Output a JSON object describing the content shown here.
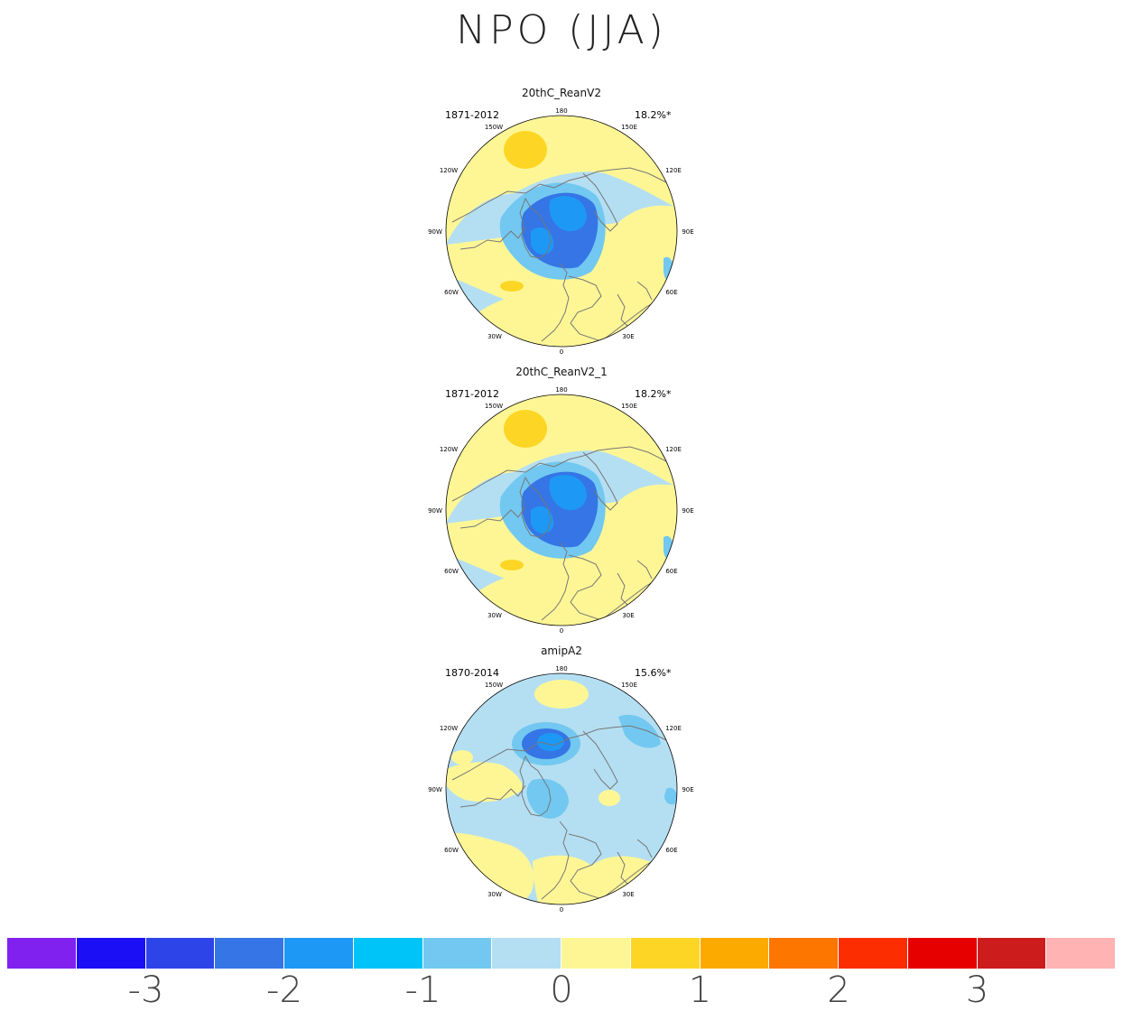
{
  "title": "NPO (JJA)",
  "panels": [
    {
      "name": "20thC_ReanV2",
      "period": "1871-2012",
      "variance": "18.2%*",
      "variant": "rean"
    },
    {
      "name": "20thC_ReanV2_1",
      "period": "1871-2012",
      "variance": "18.2%*",
      "variant": "rean"
    },
    {
      "name": "amipA2",
      "period": "1870-2014",
      "variance": "15.6%*",
      "variant": "amip"
    }
  ],
  "lon_labels": [
    "180",
    "150W",
    "150E",
    "120W",
    "120E",
    "90W",
    "90E",
    "60W",
    "60E",
    "30W",
    "30E",
    "0"
  ],
  "colorbar": {
    "colors": [
      "#8021f0",
      "#1a0ff5",
      "#2d45e8",
      "#3575e6",
      "#1e98f5",
      "#00c4f7",
      "#72c8f0",
      "#b4dff2",
      "#fef695",
      "#fdd625",
      "#fcaa00",
      "#fc7600",
      "#fc2d00",
      "#e60000",
      "#cc1c1c",
      "#ffb3b3"
    ],
    "tick_labels": [
      "-3",
      "-2",
      "-1",
      "0",
      "1",
      "2",
      "3"
    ]
  },
  "chart_data": {
    "type": "map",
    "title": "NPO (JJA)",
    "projection": "north-polar-stereographic",
    "colorbar_levels": [
      -3.5,
      -3,
      -2.5,
      -2,
      -1.5,
      -1,
      -0.5,
      0,
      0.5,
      1,
      1.5,
      2,
      2.5,
      3,
      3.5
    ],
    "panels": [
      {
        "name": "20thC_ReanV2",
        "period": "1871-2012",
        "explained_variance_pct": 18.2
      },
      {
        "name": "20thC_ReanV2_1",
        "period": "1871-2012",
        "explained_variance_pct": 18.2
      },
      {
        "name": "amipA2",
        "period": "1870-2014",
        "explained_variance_pct": 15.6
      }
    ]
  }
}
